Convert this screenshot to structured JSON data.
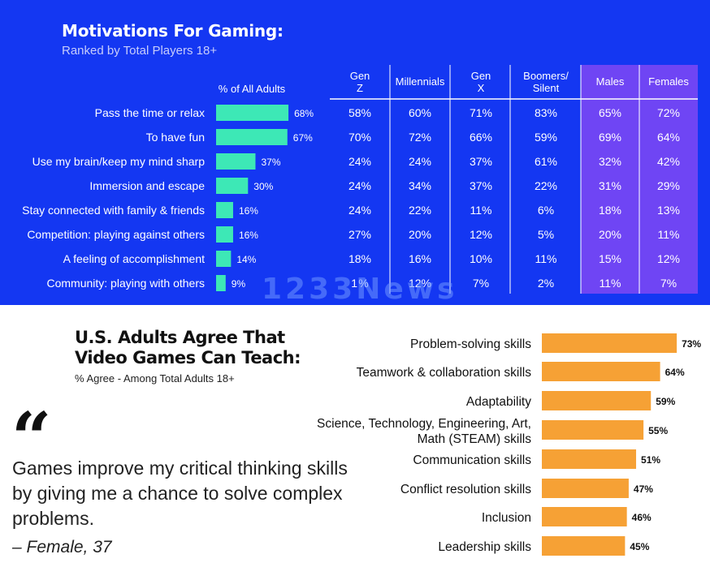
{
  "top": {
    "title": "Motivations For Gaming:",
    "subtitle": "Ranked by Total Players 18+",
    "watermark": "1233News"
  },
  "bottom": {
    "title_line1": "U.S. Adults Agree That",
    "title_line2": "Video Games Can Teach:",
    "subtitle": "% Agree - Among Total Adults 18+",
    "quote_mark": "“",
    "quote": "Games improve my critical thinking skills by giving me a chance to solve complex problems.",
    "quote_author": "– Female, 37"
  },
  "colors": {
    "top_background": "#1437f2",
    "teal_bar": "#3de8b6",
    "purple_columns": "#6f45f4",
    "orange_bar": "#f6a135"
  },
  "chart_data": [
    {
      "type": "table",
      "title": "Motivations For Gaming:",
      "subtitle": "Ranked by Total Players 18+",
      "bar_header": "% of All Adults",
      "bar_color": "#3de8b6",
      "columns": [
        "Gen Z",
        "Millennials",
        "Gen X",
        "Boomers/ Silent",
        "Males",
        "Females"
      ],
      "rows": [
        {
          "label": "Pass the time or relax",
          "all_adults": 68,
          "values": [
            "58%",
            "60%",
            "71%",
            "83%",
            "65%",
            "72%"
          ]
        },
        {
          "label": "To have fun",
          "all_adults": 67,
          "values": [
            "70%",
            "72%",
            "66%",
            "59%",
            "69%",
            "64%"
          ]
        },
        {
          "label": "Use my brain/keep my mind sharp",
          "all_adults": 37,
          "values": [
            "24%",
            "24%",
            "37%",
            "61%",
            "32%",
            "42%"
          ]
        },
        {
          "label": "Immersion and escape",
          "all_adults": 30,
          "values": [
            "24%",
            "34%",
            "37%",
            "22%",
            "31%",
            "29%"
          ]
        },
        {
          "label": "Stay connected with family & friends",
          "all_adults": 16,
          "values": [
            "24%",
            "22%",
            "11%",
            "6%",
            "18%",
            "13%"
          ]
        },
        {
          "label": "Competition: playing against others",
          "all_adults": 16,
          "values": [
            "27%",
            "20%",
            "12%",
            "5%",
            "20%",
            "11%"
          ]
        },
        {
          "label": "A feeling of accomplishment",
          "all_adults": 14,
          "values": [
            "18%",
            "16%",
            "10%",
            "11%",
            "15%",
            "12%"
          ]
        },
        {
          "label": "Community: playing with others",
          "all_adults": 9,
          "values": [
            "1 %",
            "12%",
            "7%",
            "2%",
            "11%",
            "7%"
          ]
        }
      ]
    },
    {
      "type": "bar",
      "orientation": "horizontal",
      "title": "U.S. Adults Agree That Video Games Can Teach:",
      "subtitle": "% Agree - Among Total Adults 18+",
      "bar_color": "#f6a135",
      "xlim": [
        0,
        100
      ],
      "categories": [
        "Problem-solving skills",
        "Teamwork & collaboration skills",
        "Adaptability",
        "Science, Technology, Engineering, Art, Math (STEAM) skills",
        "Communication skills",
        "Conflict resolution skills",
        "Inclusion",
        "Leadership skills"
      ],
      "category_lines": [
        [
          "Problem-solving skills"
        ],
        [
          "Teamwork & collaboration skills"
        ],
        [
          "Adaptability"
        ],
        [
          "Science, Technology, Engineering, Art,",
          "Math (STEAM) skills"
        ],
        [
          "Communication skills"
        ],
        [
          "Conflict resolution skills"
        ],
        [
          "Inclusion"
        ],
        [
          "Leadership skills"
        ]
      ],
      "values": [
        73,
        64,
        59,
        55,
        51,
        47,
        46,
        45
      ]
    }
  ]
}
